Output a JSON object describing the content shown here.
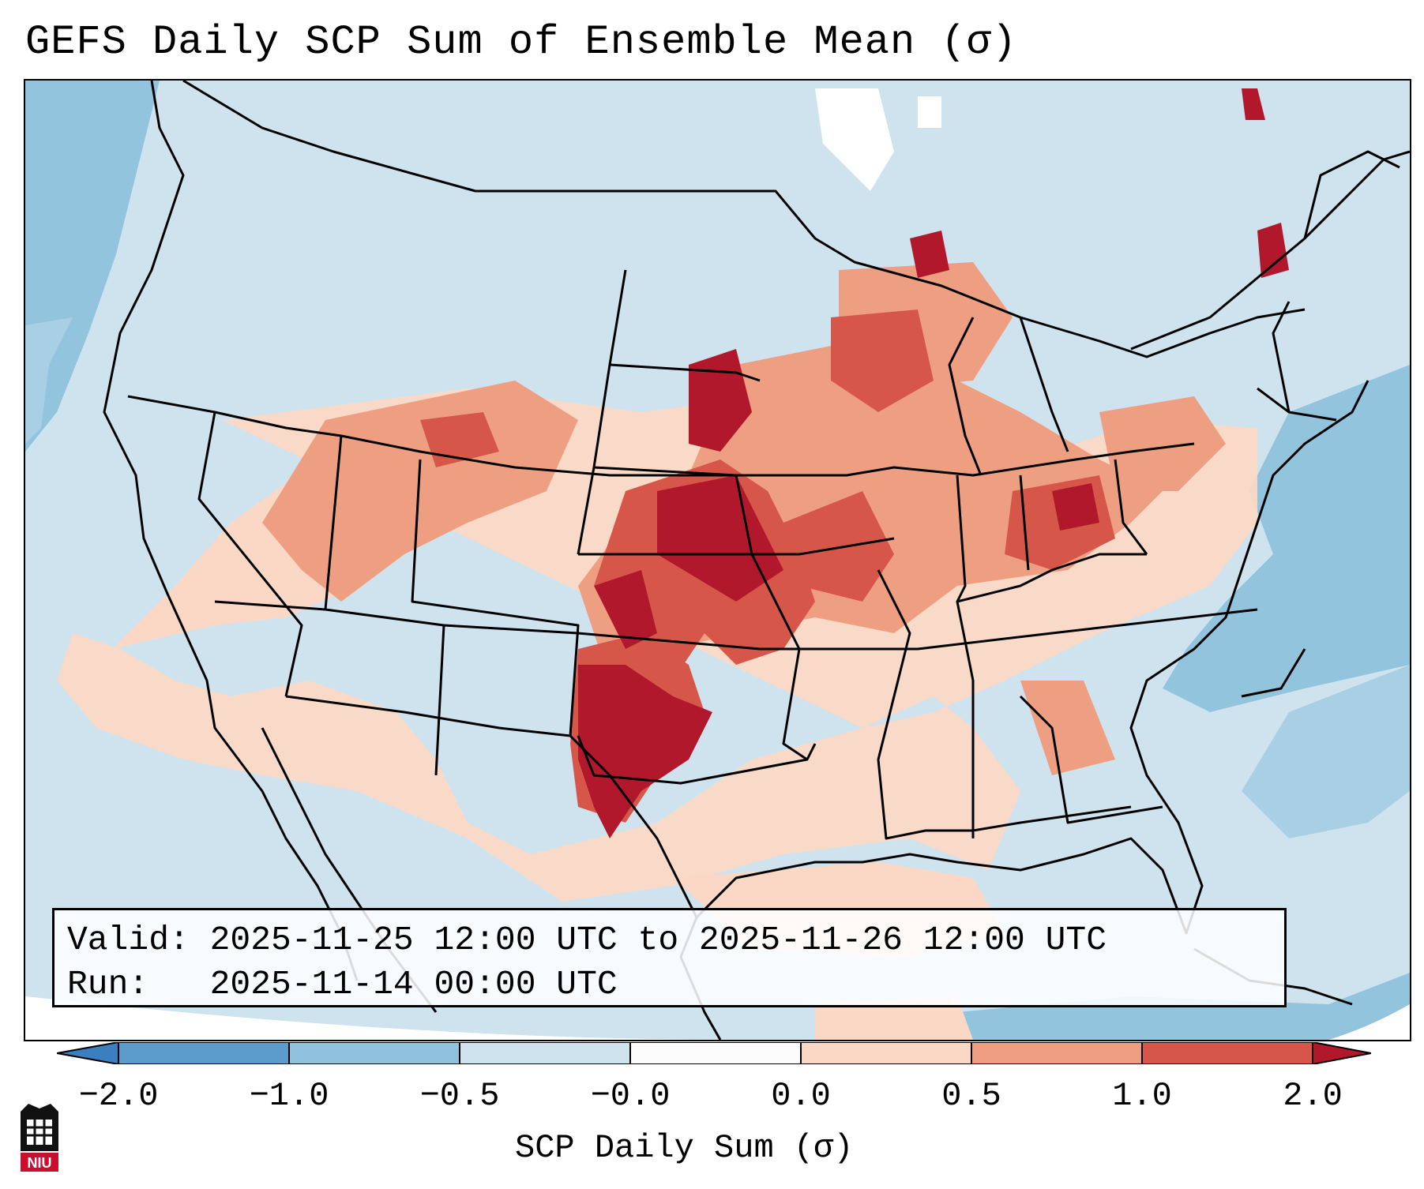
{
  "title": "GEFS Daily SCP Sum of Ensemble Mean (σ)",
  "info": {
    "valid_line": "Valid: 2025-11-25 12:00 UTC to 2025-11-26 12:00 UTC",
    "run_line": "Run:   2025-11-14 00:00 UTC"
  },
  "colorbar": {
    "label": "SCP Daily Sum (σ)",
    "ticks": [
      "−2.0",
      "−1.0",
      "−0.5",
      "−0.0",
      "0.0",
      "0.5",
      "1.0",
      "2.0"
    ],
    "colors": [
      "#3a7fbf",
      "#5b9ccc",
      "#90c2de",
      "#cfe3ef",
      "#fcfcfc",
      "#fbd8c5",
      "#ef9f81",
      "#d6574a",
      "#b2182b"
    ]
  },
  "map_colors": {
    "ocean_dark": "#92c4de",
    "background": "#cfe3ef",
    "light_red": "#fbd8c5",
    "mid_red": "#ef9f81",
    "strong_red": "#d6574a",
    "extreme_red": "#b2182b",
    "white": "#ffffff"
  },
  "logo": {
    "text": "NIU"
  }
}
